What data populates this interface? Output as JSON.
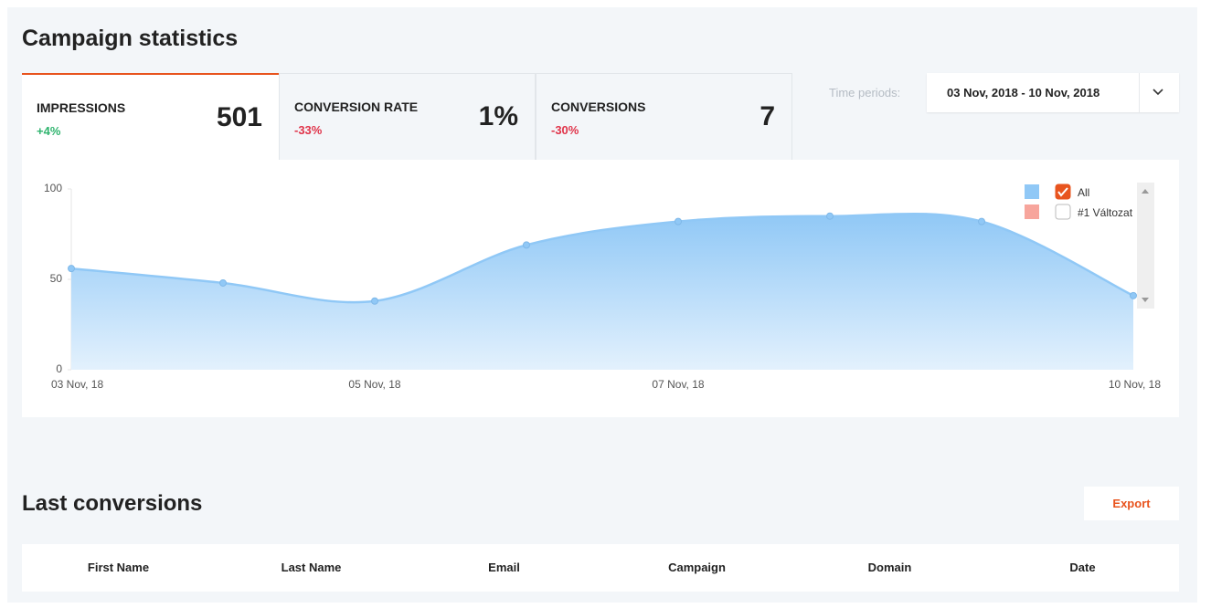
{
  "header": {
    "title": "Campaign statistics"
  },
  "stats": [
    {
      "label": "IMPRESSIONS",
      "change": "+4%",
      "value": "501"
    },
    {
      "label": "CONVERSION RATE",
      "change": "-33%",
      "value": "1%"
    },
    {
      "label": "CONVERSIONS",
      "change": "-30%",
      "value": "7"
    }
  ],
  "time_periods": {
    "label": "Time periods:",
    "value": "03 Nov, 2018 - 10 Nov, 2018"
  },
  "chart_data": {
    "type": "area",
    "categories": [
      "03 Nov, 18",
      null,
      "05 Nov, 18",
      null,
      "07 Nov, 18",
      null,
      null,
      "10 Nov, 18"
    ],
    "values": [
      56,
      48,
      38,
      69,
      82,
      85,
      82,
      41
    ],
    "color": "#90c8f6",
    "ylim": [
      0,
      100
    ],
    "yticks": [
      0,
      50,
      100
    ],
    "legend": [
      {
        "name": "All",
        "color": "#90c8f6",
        "checked": true
      },
      {
        "name": "#1 Változat",
        "color": "#f7a59c",
        "checked": false
      }
    ]
  },
  "conversions": {
    "title": "Last conversions",
    "export": "Export",
    "columns": [
      "First Name",
      "Last Name",
      "Email",
      "Campaign",
      "Domain",
      "Date"
    ]
  }
}
